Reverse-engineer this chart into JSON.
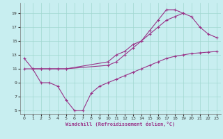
{
  "xlabel": "Windchill (Refroidissement éolien,°C)",
  "background_color": "#c8eef0",
  "grid_color": "#a0d8d0",
  "line_color": "#993388",
  "line1_x": [
    0,
    1,
    2,
    3,
    4,
    5,
    10,
    11,
    12,
    13,
    14,
    15,
    16,
    17,
    18,
    19
  ],
  "line1_y": [
    12.5,
    11.0,
    11.0,
    11.0,
    11.0,
    11.0,
    12.0,
    13.0,
    13.5,
    14.5,
    15.0,
    16.5,
    18.0,
    19.5,
    19.5,
    19.0
  ],
  "line2_x": [
    1,
    2,
    3,
    4,
    5,
    10,
    11,
    12,
    13,
    14,
    15,
    16,
    17,
    18,
    19,
    20,
    21,
    22,
    23
  ],
  "line2_y": [
    11.0,
    11.0,
    11.0,
    11.0,
    11.0,
    11.5,
    12.0,
    13.0,
    14.0,
    15.0,
    16.0,
    17.0,
    18.0,
    18.5,
    19.0,
    18.5,
    17.0,
    16.0,
    15.5
  ],
  "line3_x": [
    0,
    1,
    2,
    3,
    4,
    5,
    6,
    7,
    8,
    9,
    10,
    11,
    12,
    13,
    14,
    15,
    16,
    17,
    18,
    19,
    20,
    21,
    22,
    23
  ],
  "line3_y": [
    11.0,
    11.0,
    9.0,
    9.0,
    8.5,
    6.5,
    5.0,
    5.0,
    7.5,
    8.5,
    9.0,
    9.5,
    10.0,
    10.5,
    11.0,
    11.5,
    12.0,
    12.5,
    12.8,
    13.0,
    13.2,
    13.3,
    13.4,
    13.5
  ],
  "xlim": [
    -0.5,
    23.5
  ],
  "ylim": [
    4.5,
    20.5
  ],
  "xticks": [
    0,
    1,
    2,
    3,
    4,
    5,
    6,
    7,
    8,
    9,
    10,
    11,
    12,
    13,
    14,
    15,
    16,
    17,
    18,
    19,
    20,
    21,
    22,
    23
  ],
  "yticks": [
    5,
    7,
    9,
    11,
    13,
    15,
    17,
    19
  ]
}
